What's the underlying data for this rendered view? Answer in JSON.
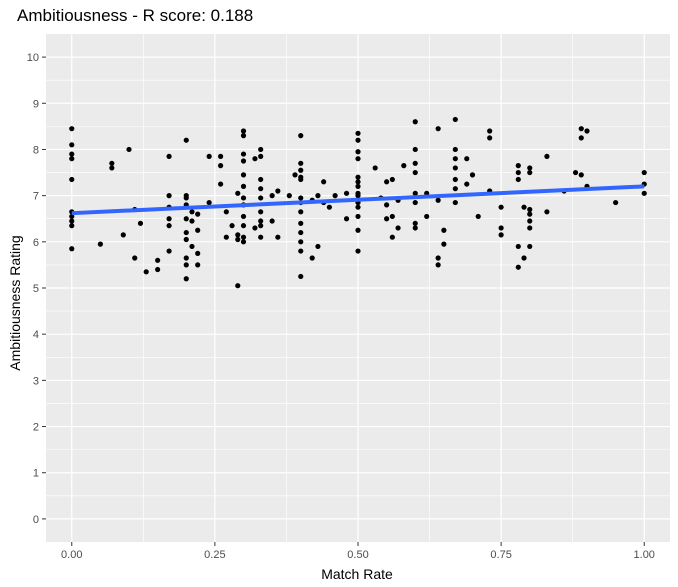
{
  "chart_data": {
    "type": "scatter",
    "title": "Ambitiousness - R score: 0.188",
    "xlabel": "Match Rate",
    "ylabel": "Ambitiousness Rating",
    "xlim": [
      -0.045,
      1.045
    ],
    "ylim": [
      -0.5,
      10.5
    ],
    "x_ticks": [
      {
        "value": 0,
        "label": "0.00"
      },
      {
        "value": 0.25,
        "label": "0.25"
      },
      {
        "value": 0.5,
        "label": "0.50"
      },
      {
        "value": 0.75,
        "label": "0.75"
      },
      {
        "value": 1,
        "label": "1.00"
      }
    ],
    "y_ticks": [
      {
        "value": 0,
        "label": "0"
      },
      {
        "value": 1,
        "label": "1"
      },
      {
        "value": 2,
        "label": "2"
      },
      {
        "value": 3,
        "label": "3"
      },
      {
        "value": 4,
        "label": "4"
      },
      {
        "value": 5,
        "label": "5"
      },
      {
        "value": 6,
        "label": "6"
      },
      {
        "value": 7,
        "label": "7"
      },
      {
        "value": 8,
        "label": "8"
      },
      {
        "value": 9,
        "label": "9"
      },
      {
        "value": 10,
        "label": "10"
      }
    ],
    "grid": true,
    "background": "#ebebeb",
    "point_color": "#000000",
    "trend_color": "#3366ff",
    "points": [
      [
        0.0,
        8.45
      ],
      [
        0.0,
        8.1
      ],
      [
        0.0,
        7.9
      ],
      [
        0.0,
        7.8
      ],
      [
        0.0,
        7.35
      ],
      [
        0.0,
        6.65
      ],
      [
        0.0,
        6.55
      ],
      [
        0.0,
        6.45
      ],
      [
        0.0,
        6.35
      ],
      [
        0.0,
        5.85
      ],
      [
        0.05,
        5.95
      ],
      [
        0.07,
        7.7
      ],
      [
        0.07,
        7.6
      ],
      [
        0.09,
        6.15
      ],
      [
        0.1,
        8.0
      ],
      [
        0.11,
        6.7
      ],
      [
        0.11,
        5.65
      ],
      [
        0.12,
        6.4
      ],
      [
        0.13,
        5.35
      ],
      [
        0.15,
        5.6
      ],
      [
        0.15,
        5.4
      ],
      [
        0.17,
        7.85
      ],
      [
        0.17,
        7.0
      ],
      [
        0.17,
        6.75
      ],
      [
        0.17,
        6.5
      ],
      [
        0.17,
        6.35
      ],
      [
        0.17,
        5.8
      ],
      [
        0.2,
        8.2
      ],
      [
        0.2,
        7.0
      ],
      [
        0.2,
        6.95
      ],
      [
        0.2,
        6.8
      ],
      [
        0.2,
        6.5
      ],
      [
        0.2,
        6.2
      ],
      [
        0.2,
        6.05
      ],
      [
        0.2,
        5.65
      ],
      [
        0.2,
        5.5
      ],
      [
        0.2,
        5.2
      ],
      [
        0.21,
        6.65
      ],
      [
        0.21,
        6.45
      ],
      [
        0.21,
        5.9
      ],
      [
        0.22,
        6.6
      ],
      [
        0.22,
        6.25
      ],
      [
        0.22,
        5.75
      ],
      [
        0.22,
        5.5
      ],
      [
        0.24,
        7.85
      ],
      [
        0.24,
        6.85
      ],
      [
        0.26,
        7.85
      ],
      [
        0.26,
        7.65
      ],
      [
        0.26,
        7.25
      ],
      [
        0.27,
        6.65
      ],
      [
        0.27,
        6.1
      ],
      [
        0.28,
        6.35
      ],
      [
        0.29,
        7.05
      ],
      [
        0.29,
        6.15
      ],
      [
        0.29,
        6.05
      ],
      [
        0.29,
        5.05
      ],
      [
        0.3,
        8.4
      ],
      [
        0.3,
        8.3
      ],
      [
        0.3,
        7.9
      ],
      [
        0.3,
        7.75
      ],
      [
        0.3,
        7.45
      ],
      [
        0.3,
        7.2
      ],
      [
        0.3,
        6.95
      ],
      [
        0.3,
        6.8
      ],
      [
        0.3,
        6.55
      ],
      [
        0.3,
        6.35
      ],
      [
        0.3,
        6.1
      ],
      [
        0.3,
        6.0
      ],
      [
        0.32,
        7.8
      ],
      [
        0.32,
        6.3
      ],
      [
        0.33,
        8.0
      ],
      [
        0.33,
        7.85
      ],
      [
        0.33,
        7.35
      ],
      [
        0.33,
        7.15
      ],
      [
        0.33,
        6.95
      ],
      [
        0.33,
        6.65
      ],
      [
        0.33,
        6.45
      ],
      [
        0.33,
        6.35
      ],
      [
        0.33,
        6.1
      ],
      [
        0.35,
        7.0
      ],
      [
        0.35,
        6.45
      ],
      [
        0.36,
        7.1
      ],
      [
        0.36,
        6.1
      ],
      [
        0.38,
        7.0
      ],
      [
        0.39,
        7.45
      ],
      [
        0.4,
        8.3
      ],
      [
        0.4,
        7.7
      ],
      [
        0.4,
        7.55
      ],
      [
        0.4,
        7.4
      ],
      [
        0.4,
        7.35
      ],
      [
        0.4,
        6.95
      ],
      [
        0.4,
        6.85
      ],
      [
        0.4,
        6.65
      ],
      [
        0.4,
        6.4
      ],
      [
        0.4,
        6.2
      ],
      [
        0.4,
        6.0
      ],
      [
        0.4,
        5.8
      ],
      [
        0.4,
        5.25
      ],
      [
        0.42,
        6.9
      ],
      [
        0.42,
        5.65
      ],
      [
        0.43,
        7.0
      ],
      [
        0.43,
        5.9
      ],
      [
        0.44,
        6.85
      ],
      [
        0.44,
        7.3
      ],
      [
        0.45,
        6.75
      ],
      [
        0.46,
        7.0
      ],
      [
        0.48,
        7.05
      ],
      [
        0.48,
        6.5
      ],
      [
        0.5,
        8.35
      ],
      [
        0.5,
        8.2
      ],
      [
        0.5,
        7.95
      ],
      [
        0.5,
        7.8
      ],
      [
        0.5,
        7.4
      ],
      [
        0.5,
        7.3
      ],
      [
        0.5,
        7.2
      ],
      [
        0.5,
        7.05
      ],
      [
        0.5,
        7.0
      ],
      [
        0.5,
        6.85
      ],
      [
        0.5,
        6.75
      ],
      [
        0.5,
        6.55
      ],
      [
        0.5,
        6.25
      ],
      [
        0.5,
        5.8
      ],
      [
        0.53,
        7.6
      ],
      [
        0.54,
        6.95
      ],
      [
        0.55,
        7.3
      ],
      [
        0.55,
        6.8
      ],
      [
        0.55,
        6.5
      ],
      [
        0.56,
        7.35
      ],
      [
        0.56,
        6.55
      ],
      [
        0.56,
        6.1
      ],
      [
        0.57,
        6.9
      ],
      [
        0.57,
        6.3
      ],
      [
        0.58,
        7.65
      ],
      [
        0.6,
        8.6
      ],
      [
        0.6,
        8.0
      ],
      [
        0.6,
        7.7
      ],
      [
        0.6,
        7.5
      ],
      [
        0.6,
        7.05
      ],
      [
        0.6,
        6.85
      ],
      [
        0.6,
        6.4
      ],
      [
        0.6,
        6.3
      ],
      [
        0.62,
        7.05
      ],
      [
        0.62,
        6.55
      ],
      [
        0.64,
        8.45
      ],
      [
        0.64,
        6.9
      ],
      [
        0.64,
        5.65
      ],
      [
        0.64,
        5.5
      ],
      [
        0.65,
        6.25
      ],
      [
        0.65,
        5.95
      ],
      [
        0.67,
        8.65
      ],
      [
        0.67,
        8.0
      ],
      [
        0.67,
        7.8
      ],
      [
        0.67,
        7.6
      ],
      [
        0.67,
        7.35
      ],
      [
        0.67,
        7.15
      ],
      [
        0.67,
        6.85
      ],
      [
        0.69,
        7.8
      ],
      [
        0.69,
        7.25
      ],
      [
        0.7,
        7.45
      ],
      [
        0.71,
        6.55
      ],
      [
        0.73,
        8.4
      ],
      [
        0.73,
        8.25
      ],
      [
        0.73,
        7.1
      ],
      [
        0.75,
        6.75
      ],
      [
        0.75,
        6.3
      ],
      [
        0.75,
        6.15
      ],
      [
        0.78,
        7.65
      ],
      [
        0.78,
        7.5
      ],
      [
        0.78,
        7.35
      ],
      [
        0.78,
        5.9
      ],
      [
        0.78,
        5.45
      ],
      [
        0.79,
        6.75
      ],
      [
        0.79,
        5.65
      ],
      [
        0.8,
        7.6
      ],
      [
        0.8,
        7.5
      ],
      [
        0.8,
        6.7
      ],
      [
        0.8,
        6.6
      ],
      [
        0.8,
        6.45
      ],
      [
        0.8,
        6.3
      ],
      [
        0.8,
        5.9
      ],
      [
        0.83,
        7.85
      ],
      [
        0.83,
        6.65
      ],
      [
        0.86,
        7.1
      ],
      [
        0.88,
        7.5
      ],
      [
        0.89,
        8.45
      ],
      [
        0.89,
        8.25
      ],
      [
        0.89,
        7.45
      ],
      [
        0.9,
        8.4
      ],
      [
        0.9,
        7.2
      ],
      [
        0.95,
        6.85
      ],
      [
        1.0,
        7.5
      ],
      [
        1.0,
        7.25
      ],
      [
        1.0,
        7.05
      ]
    ],
    "trend_line": {
      "x": [
        0.0,
        1.0
      ],
      "y": [
        6.62,
        7.2
      ]
    }
  }
}
